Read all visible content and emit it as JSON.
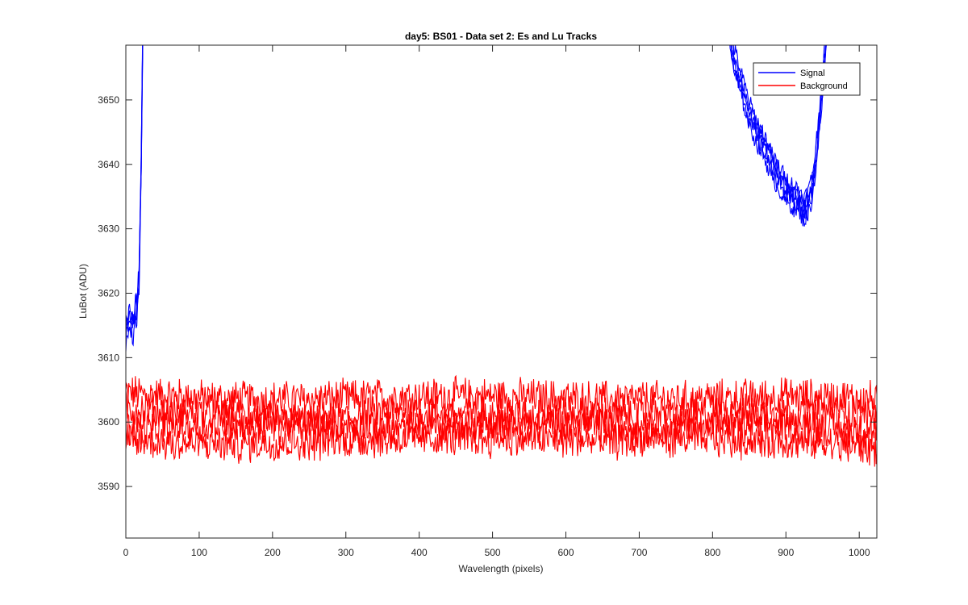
{
  "chart_data": {
    "type": "line",
    "title": "day5: BS01 - Data set 2: Es and Lu Tracks",
    "xlabel": "Wavelength (pixels)",
    "ylabel": "LuBot (ADU)",
    "xlim": [
      0,
      1024
    ],
    "ylim": [
      3582,
      3658.5
    ],
    "xticks": [
      0,
      100,
      200,
      300,
      400,
      500,
      600,
      700,
      800,
      900,
      1000
    ],
    "yticks": [
      3590,
      3600,
      3610,
      3620,
      3630,
      3640,
      3650
    ],
    "grid": false,
    "legend_position": "top-right",
    "colors": {
      "signal": "#0000ff",
      "background": "#ff0000",
      "axes": "#262626"
    },
    "series": [
      {
        "name": "Signal",
        "color": "#0000ff",
        "segments": [
          {
            "x": [
              0,
              5,
              10,
              15,
              18,
              21,
              23,
              25,
              27
            ],
            "y": [
              3614,
              3616,
              3615,
              3618,
              3622,
              3640,
              3660,
              3680,
              3700
            ]
          },
          {
            "x": [
              805,
              820,
              830,
              840,
              850,
              860,
              870,
              880,
              890,
              900,
              910,
              920,
              925,
              930,
              935,
              940,
              945,
              950,
              955,
              960,
              970
            ],
            "y": [
              3700,
              3662,
              3656,
              3652,
              3648,
              3645,
              3643,
              3640,
              3638,
              3636,
              3635,
              3634,
              3633,
              3634,
              3636,
              3640,
              3646,
              3652,
              3660,
              3668,
              3700
            ]
          }
        ]
      },
      {
        "name": "Background",
        "color": "#ff0000",
        "traces": [
          {
            "x": [
              0,
              128,
              256,
              384,
              512,
              640,
              768,
              896,
              1024
            ],
            "y": [
              3604.5,
              3603.5,
              3603.5,
              3604,
              3604,
              3603.5,
              3603.5,
              3604,
              3603.5
            ]
          },
          {
            "x": [
              0,
              128,
              256,
              384,
              512,
              640,
              768,
              896,
              1024
            ],
            "y": [
              3602,
              3601,
              3600,
              3601.5,
              3601,
              3601,
              3601,
              3601.5,
              3601
            ]
          },
          {
            "x": [
              0,
              128,
              256,
              384,
              512,
              640,
              768,
              896,
              1024
            ],
            "y": [
              3599,
              3599.5,
              3599.5,
              3599,
              3600,
              3599.5,
              3599.5,
              3599.5,
              3598.5
            ]
          },
          {
            "x": [
              0,
              128,
              256,
              384,
              512,
              640,
              768,
              896,
              1024
            ],
            "y": [
              3597,
              3596.5,
              3597,
              3597.5,
              3597.5,
              3597,
              3597.5,
              3597,
              3596
            ]
          }
        ]
      }
    ]
  }
}
